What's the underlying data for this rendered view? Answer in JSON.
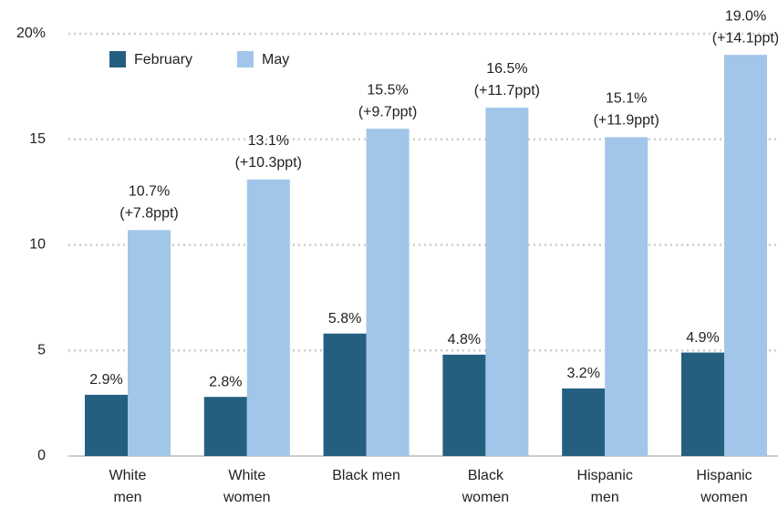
{
  "chart_data": {
    "type": "bar",
    "categories": [
      [
        "White",
        "men"
      ],
      [
        "White",
        "women"
      ],
      [
        "Black men"
      ],
      [
        "Black",
        "women"
      ],
      [
        "Hispanic",
        "men"
      ],
      [
        "Hispanic",
        "women"
      ]
    ],
    "series": [
      {
        "name": "February",
        "color": "#255f80",
        "values": [
          2.9,
          2.8,
          5.8,
          4.8,
          3.2,
          4.9
        ],
        "value_labels": [
          "2.9%",
          "2.8%",
          "5.8%",
          "4.8%",
          "3.2%",
          "4.9%"
        ]
      },
      {
        "name": "May",
        "color": "#a1c6e9",
        "values": [
          10.7,
          13.1,
          15.5,
          16.5,
          15.1,
          19.0
        ],
        "value_labels": [
          "10.7%",
          "13.1%",
          "15.5%",
          "16.5%",
          "15.1%",
          "19.0%"
        ],
        "change_labels": [
          "(+7.8ppt)",
          "(+10.3ppt)",
          "(+9.7ppt)",
          "(+11.7ppt)",
          "(+11.9ppt)",
          "(+14.1ppt)"
        ]
      }
    ],
    "ylim": [
      0,
      20
    ],
    "yticks": [
      0,
      5,
      10,
      15,
      {
        "value": 20,
        "label": "20%"
      }
    ],
    "grid": true,
    "legend": "top-left"
  }
}
